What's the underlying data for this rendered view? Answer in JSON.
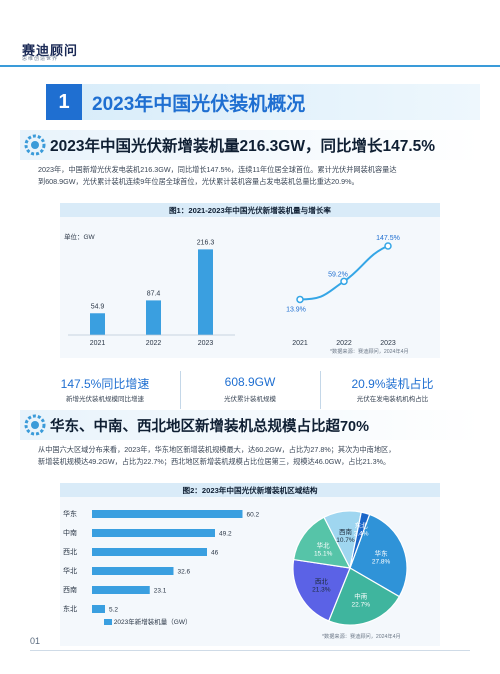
{
  "header": {
    "brand": "赛迪顾问",
    "brand_sub": "思维创造世界"
  },
  "section": {
    "number": "1",
    "title": "2023年中国光伏装机概况"
  },
  "sub1": {
    "title": "2023年中国光伏新增装机量216.3GW，同比增长147.5%",
    "para_line1": "2023年，中国新增光伏发电装机216.3GW，同比增长147.5%，连续11年位居全球首位。累计光伏并网装机容量达",
    "para_line2": "到608.9GW，光伏累计装机连续9年位居全球首位，光伏累计装机容量占发电装机总量比重达20.9%。"
  },
  "fig1": {
    "title": "图1：2021-2023年中国光伏新增装机量与增长率",
    "unit": "单位：GW",
    "source": "*数据来源：赛迪顾问，2024年4月"
  },
  "stats": [
    {
      "value": "147.5%同比增速",
      "label": "新增光伏装机规模同比增速"
    },
    {
      "value": "608.9GW",
      "label": "光伏累计装机规模"
    },
    {
      "value": "20.9%装机占比",
      "label": "光伏在发电装机机构占比"
    }
  ],
  "sub2": {
    "title": "华东、中南、西北地区新增装机总规模占比超70%",
    "para_line1": "从中国六大区域分布来看，2023年，华东地区新增装机规模最大，达60.2GW，占比为27.8%；其次为中南地区，",
    "para_line2": "新增装机规模达49.2GW，占比为22.7%；西北地区新增装机规模占比位居第三，规模达46.0GW，占比21.3%。"
  },
  "fig2": {
    "title": "图2：2023年中国光伏新增装机区域结构",
    "legend": "2023年新增装机量（GW）",
    "source": "*数据来源：赛迪顾问，2024年4月"
  },
  "footer": {
    "page": "01"
  },
  "watermark": "满天星",
  "colors": {
    "accent": "#1f6fd1",
    "bar": "#3a9fe0",
    "line": "#35a6e6",
    "pie": [
      "#2f93d8",
      "#3fb59e",
      "#5b62e6",
      "#56c4a8",
      "#9fd6f0",
      "#1b66c9"
    ]
  },
  "chart_data": [
    {
      "type": "bar",
      "categories": [
        "2021",
        "2022",
        "2023"
      ],
      "values": [
        54.9,
        87.4,
        216.3
      ],
      "ylabel": "单位：GW",
      "ylim": [
        0,
        240
      ]
    },
    {
      "type": "line",
      "x": [
        "2021",
        "2022",
        "2023"
      ],
      "values": [
        13.9,
        59.2,
        147.5
      ],
      "value_labels": [
        "13.9%",
        "59.2%",
        "147.5%"
      ],
      "ylim": [
        0,
        160
      ]
    },
    {
      "type": "bar",
      "orientation": "horizontal",
      "categories": [
        "华东",
        "中南",
        "西北",
        "华北",
        "西南",
        "东北"
      ],
      "values": [
        60.2,
        49.2,
        46.0,
        32.6,
        23.1,
        5.2
      ],
      "series_name": "2023年新增装机量（GW）",
      "xlim": [
        0,
        70
      ]
    },
    {
      "type": "pie",
      "labels": [
        "华东",
        "中南",
        "西北",
        "华北",
        "西南",
        "东北"
      ],
      "values": [
        27.8,
        22.7,
        21.3,
        15.1,
        10.7,
        2.4
      ],
      "value_labels": [
        "27.8%",
        "22.7%",
        "21.3%",
        "15.1%",
        "10.7%",
        "2.4%"
      ]
    }
  ]
}
